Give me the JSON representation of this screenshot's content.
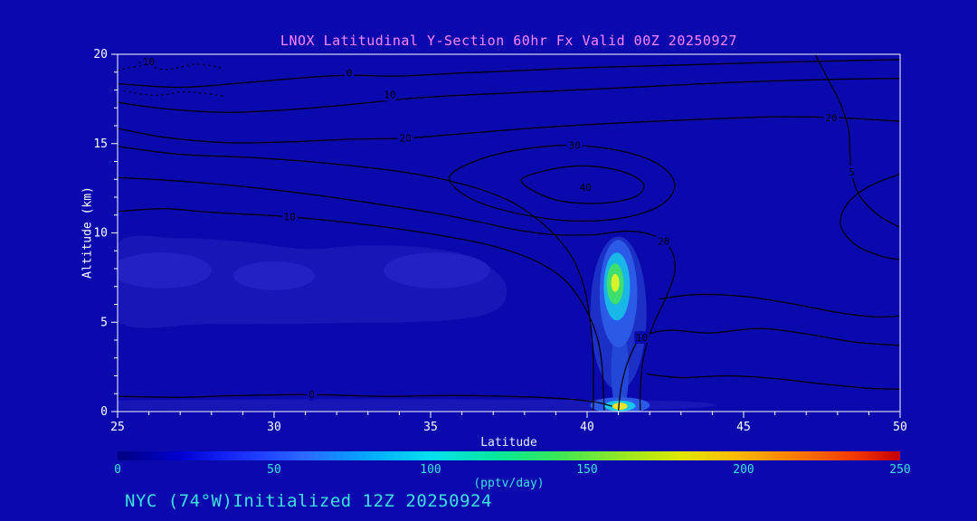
{
  "colors": {
    "background": "#0909ad",
    "title": "#ff86ff",
    "axis_text": "#ffffff",
    "cyan_text": "#3fe0e0",
    "box": "#ffffff",
    "contour": "#000000"
  },
  "chart_data": {
    "type": "contour",
    "title": "LNOX Latitudinal Y-Section 60hr  Fx Valid 00Z 20250927",
    "xlabel": "Latitude",
    "ylabel": "Altitude (km)",
    "annotation": "NYC (74°W)Initialized 12Z 20250924",
    "units": "(pptv/day)",
    "xlim": [
      25,
      50
    ],
    "ylim": [
      0,
      20
    ],
    "x_ticks": [
      25,
      30,
      35,
      40,
      45,
      50
    ],
    "y_ticks": [
      0,
      5,
      10,
      15,
      20
    ],
    "grid": false,
    "peak": {
      "lat": 41,
      "altitude_km": 7,
      "value_est_pptv_day": 160
    },
    "colorbar": {
      "min": 0,
      "max": 250,
      "ticks": [
        0,
        50,
        100,
        150,
        200,
        250
      ],
      "stops": [
        {
          "o": 0.0,
          "c": "#000080"
        },
        {
          "o": 0.08,
          "c": "#0000d0"
        },
        {
          "o": 0.16,
          "c": "#1a30ff"
        },
        {
          "o": 0.24,
          "c": "#2a6aff"
        },
        {
          "o": 0.32,
          "c": "#00a8ff"
        },
        {
          "o": 0.4,
          "c": "#00e0f0"
        },
        {
          "o": 0.48,
          "c": "#00e8a0"
        },
        {
          "o": 0.56,
          "c": "#38e858"
        },
        {
          "o": 0.64,
          "c": "#90e828"
        },
        {
          "o": 0.72,
          "c": "#e0e800"
        },
        {
          "o": 0.8,
          "c": "#ffb400"
        },
        {
          "o": 0.88,
          "c": "#ff7000"
        },
        {
          "o": 0.95,
          "c": "#f03000"
        },
        {
          "o": 1.0,
          "c": "#c00000"
        }
      ]
    },
    "contours": [
      {
        "level": -10,
        "dashed": true,
        "points": [
          [
            25,
            19.1
          ],
          [
            25.8,
            19.35
          ],
          [
            26.6,
            19.15
          ],
          [
            27.5,
            19.45
          ],
          [
            28.3,
            19.25
          ]
        ],
        "labels": [
          {
            "text": "-10",
            "lat": 25.9,
            "km": 19.6
          }
        ]
      },
      {
        "level": -10,
        "dashed": true,
        "points": [
          [
            25.2,
            17.95
          ],
          [
            26.2,
            17.7
          ],
          [
            27.2,
            17.9
          ],
          [
            28.4,
            17.65
          ]
        ],
        "labels": []
      },
      {
        "level": 0,
        "points": [
          [
            25,
            18.35
          ],
          [
            27,
            18.15
          ],
          [
            29,
            18.4
          ],
          [
            31,
            18.7
          ],
          [
            32.4,
            18.82
          ],
          [
            34,
            18.78
          ],
          [
            36,
            18.95
          ],
          [
            38,
            19.1
          ],
          [
            40,
            19.25
          ],
          [
            43,
            19.4
          ],
          [
            46,
            19.55
          ],
          [
            50,
            19.7
          ]
        ],
        "labels": [
          {
            "text": "0",
            "lat": 32.4,
            "km": 18.95
          }
        ]
      },
      {
        "level": 10,
        "points": [
          [
            25,
            17.3
          ],
          [
            26.5,
            16.95
          ],
          [
            28.5,
            16.75
          ],
          [
            30.5,
            16.9
          ],
          [
            32.5,
            17.2
          ],
          [
            34.5,
            17.55
          ],
          [
            36.5,
            17.75
          ],
          [
            39,
            17.95
          ],
          [
            42,
            18.2
          ],
          [
            45,
            18.45
          ],
          [
            48,
            18.6
          ],
          [
            50,
            18.65
          ]
        ],
        "labels": [
          {
            "text": "10",
            "lat": 33.7,
            "km": 17.75
          }
        ]
      },
      {
        "level": 20,
        "points": [
          [
            25,
            15.85
          ],
          [
            26.5,
            15.35
          ],
          [
            28.5,
            15.05
          ],
          [
            30.5,
            15.1
          ],
          [
            32.5,
            15.25
          ],
          [
            34.2,
            15.3
          ],
          [
            36,
            15.55
          ],
          [
            38.5,
            15.9
          ],
          [
            41,
            16.15
          ],
          [
            43.5,
            16.35
          ],
          [
            46,
            16.5
          ],
          [
            48,
            16.45
          ],
          [
            50,
            16.25
          ]
        ],
        "labels": [
          {
            "text": "20",
            "lat": 34.2,
            "km": 15.32
          },
          {
            "text": "20",
            "lat": 47.8,
            "km": 16.45
          }
        ]
      },
      {
        "level": "",
        "points": [
          [
            25,
            14.85
          ],
          [
            27,
            14.4
          ],
          [
            29.5,
            14.2
          ],
          [
            32,
            13.85
          ],
          [
            34.5,
            13.3
          ],
          [
            36.2,
            12.65
          ],
          [
            37.4,
            11.9
          ],
          [
            38.2,
            11.05
          ],
          [
            38.9,
            10.0
          ],
          [
            39.5,
            8.7
          ],
          [
            39.9,
            7.0
          ],
          [
            40.1,
            5.0
          ],
          [
            40.2,
            3.0
          ],
          [
            40.2,
            0.05
          ]
        ],
        "labels": []
      },
      {
        "level": 10,
        "points": [
          [
            25,
            11.2
          ],
          [
            26.5,
            11.35
          ],
          [
            28,
            11.15
          ],
          [
            30.5,
            10.9
          ],
          [
            33,
            10.45
          ],
          [
            35,
            9.95
          ],
          [
            36.8,
            9.35
          ],
          [
            38.2,
            8.55
          ],
          [
            39.2,
            7.5
          ],
          [
            39.8,
            6.2
          ],
          [
            40.2,
            4.8
          ],
          [
            40.45,
            3.0
          ],
          [
            40.55,
            0.05
          ]
        ],
        "labels": [
          {
            "text": "10",
            "lat": 30.5,
            "km": 10.92
          }
        ]
      },
      {
        "level": 10,
        "points": [
          [
            41.0,
            0.05
          ],
          [
            41.1,
            1.5
          ],
          [
            41.35,
            3.0
          ],
          [
            41.75,
            4.15
          ],
          [
            42.6,
            4.55
          ],
          [
            43.9,
            4.4
          ],
          [
            45.5,
            4.65
          ],
          [
            47,
            4.35
          ],
          [
            48.5,
            3.9
          ],
          [
            50,
            3.7
          ]
        ],
        "labels": [
          {
            "text": "10",
            "lat": 41.75,
            "km": 4.15
          }
        ]
      },
      {
        "level": 20,
        "points": [
          [
            25,
            13.1
          ],
          [
            27,
            12.9
          ],
          [
            29,
            12.6
          ],
          [
            31,
            12.2
          ],
          [
            33,
            11.7
          ],
          [
            35,
            11.15
          ],
          [
            36.6,
            10.6
          ],
          [
            37.8,
            10.15
          ],
          [
            39,
            9.9
          ],
          [
            40.2,
            9.9
          ],
          [
            41.3,
            10.1
          ],
          [
            42.2,
            9.8
          ],
          [
            42.7,
            9.0
          ],
          [
            42.8,
            7.8
          ],
          [
            42.5,
            6.3
          ],
          [
            42.1,
            4.8
          ],
          [
            41.8,
            3.0
          ],
          [
            41.7,
            1.2
          ],
          [
            41.7,
            0.05
          ]
        ],
        "labels": [
          {
            "text": "20",
            "lat": 42.45,
            "km": 9.55
          }
        ]
      },
      {
        "level": 30,
        "closed": true,
        "points": [
          [
            35.6,
            13.1
          ],
          [
            36.4,
            14.0
          ],
          [
            37.8,
            14.65
          ],
          [
            39.6,
            14.9
          ],
          [
            41.3,
            14.5
          ],
          [
            42.4,
            13.7
          ],
          [
            42.8,
            12.6
          ],
          [
            42.3,
            11.5
          ],
          [
            41.0,
            10.8
          ],
          [
            39.3,
            10.7
          ],
          [
            37.5,
            11.2
          ],
          [
            36.2,
            12.0
          ]
        ],
        "labels": [
          {
            "text": "30",
            "lat": 39.6,
            "km": 14.9
          }
        ]
      },
      {
        "level": 40,
        "closed": true,
        "points": [
          [
            37.9,
            12.9
          ],
          [
            38.7,
            13.5
          ],
          [
            39.9,
            13.75
          ],
          [
            41.1,
            13.45
          ],
          [
            41.8,
            12.75
          ],
          [
            41.5,
            12.0
          ],
          [
            40.3,
            11.65
          ],
          [
            38.9,
            11.9
          ]
        ],
        "labels": [
          {
            "text": "40",
            "lat": 39.95,
            "km": 12.55
          }
        ]
      },
      {
        "level": 5,
        "points": [
          [
            47.3,
            19.95
          ],
          [
            47.7,
            18.6
          ],
          [
            48.1,
            17.2
          ],
          [
            48.35,
            15.8
          ],
          [
            48.4,
            14.4
          ],
          [
            48.45,
            13.4
          ],
          [
            48.7,
            12.1
          ],
          [
            49.3,
            11.0
          ],
          [
            50,
            10.3
          ]
        ],
        "labels": [
          {
            "text": "5",
            "lat": 48.45,
            "km": 13.42
          }
        ]
      },
      {
        "level": "",
        "points": [
          [
            50,
            13.3
          ],
          [
            49.0,
            12.6
          ],
          [
            48.3,
            11.6
          ],
          [
            48.1,
            10.4
          ],
          [
            48.6,
            9.3
          ],
          [
            49.4,
            8.7
          ],
          [
            50,
            8.5
          ]
        ],
        "labels": []
      },
      {
        "level": "",
        "points": [
          [
            42.3,
            6.3
          ],
          [
            43.5,
            6.55
          ],
          [
            45,
            6.45
          ],
          [
            46.5,
            6.05
          ],
          [
            48,
            5.55
          ],
          [
            49.2,
            5.3
          ],
          [
            50,
            5.35
          ]
        ],
        "labels": []
      },
      {
        "level": "",
        "points": [
          [
            41.9,
            2.1
          ],
          [
            43,
            1.9
          ],
          [
            44.5,
            2.0
          ],
          [
            46,
            1.85
          ],
          [
            47.5,
            1.55
          ],
          [
            49,
            1.3
          ],
          [
            50,
            1.25
          ]
        ],
        "labels": []
      },
      {
        "level": 0,
        "points": [
          [
            25,
            0.85
          ],
          [
            27,
            0.8
          ],
          [
            29,
            0.9
          ],
          [
            31.2,
            0.95
          ],
          [
            33.5,
            0.85
          ],
          [
            35.5,
            0.9
          ],
          [
            37.5,
            0.85
          ],
          [
            39,
            0.75
          ],
          [
            40.2,
            0.55
          ],
          [
            40.8,
            0.3
          ]
        ],
        "labels": [
          {
            "text": "0",
            "lat": 31.2,
            "km": 0.95
          }
        ]
      }
    ],
    "fills": [
      {
        "type": "polygon",
        "color": "#1717b8",
        "points": [
          [
            25,
            9.4
          ],
          [
            27,
            9.7
          ],
          [
            29,
            9.5
          ],
          [
            31,
            9.1
          ],
          [
            33,
            9.3
          ],
          [
            35.2,
            9.1
          ],
          [
            36.6,
            8.4
          ],
          [
            37.4,
            7.1
          ],
          [
            37.1,
            5.7
          ],
          [
            35.5,
            5.1
          ],
          [
            32,
            4.95
          ],
          [
            28,
            4.9
          ],
          [
            25,
            5.05
          ]
        ]
      },
      {
        "type": "ellipse",
        "color": "#2222c4",
        "lat": 26.4,
        "km": 7.9,
        "rlat": 1.6,
        "rkm": 1.0
      },
      {
        "type": "ellipse",
        "color": "#2222c4",
        "lat": 30.0,
        "km": 7.6,
        "rlat": 1.3,
        "rkm": 0.8
      },
      {
        "type": "ellipse",
        "color": "#2222c4",
        "lat": 35.2,
        "km": 7.9,
        "rlat": 1.7,
        "rkm": 1.0
      },
      {
        "type": "polygon",
        "color": "#1717b8",
        "points": [
          [
            25,
            0.62
          ],
          [
            42,
            0.62
          ],
          [
            42,
            0.12
          ],
          [
            25,
            0.12
          ]
        ]
      },
      {
        "type": "ellipse",
        "color": "#1c2fc6",
        "lat": 41.0,
        "km": 5.5,
        "rlat": 0.9,
        "rkm": 4.3
      },
      {
        "type": "ellipse",
        "color": "#2347d8",
        "lat": 41.05,
        "km": 2.3,
        "rlat": 0.28,
        "rkm": 2.4
      },
      {
        "type": "ellipse",
        "color": "#2b59e8",
        "lat": 41.0,
        "km": 6.6,
        "rlat": 0.6,
        "rkm": 3.0
      },
      {
        "type": "ellipse",
        "color": "#19b7e8",
        "lat": 40.95,
        "km": 7.0,
        "rlat": 0.42,
        "rkm": 1.9
      },
      {
        "type": "ellipse",
        "color": "#3fdf6f",
        "lat": 40.9,
        "km": 7.15,
        "rlat": 0.27,
        "rkm": 1.15
      },
      {
        "type": "ellipse",
        "color": "#d8f32c",
        "lat": 40.9,
        "km": 7.2,
        "rlat": 0.13,
        "rkm": 0.5
      },
      {
        "type": "ellipse",
        "color": "#2b59e8",
        "lat": 41.05,
        "km": 0.35,
        "rlat": 0.95,
        "rkm": 0.45
      },
      {
        "type": "ellipse",
        "color": "#19c7e8",
        "lat": 41.05,
        "km": 0.32,
        "rlat": 0.5,
        "rkm": 0.3
      },
      {
        "type": "ellipse",
        "color": "#f0e42a",
        "lat": 41.05,
        "km": 0.3,
        "rlat": 0.24,
        "rkm": 0.2
      }
    ]
  }
}
